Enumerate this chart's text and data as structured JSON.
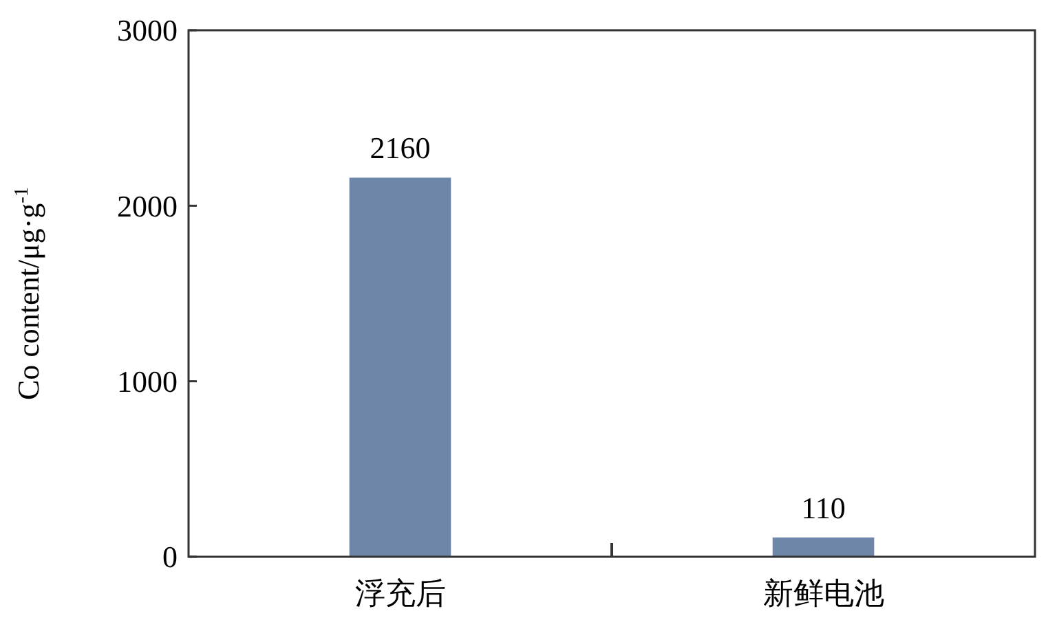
{
  "chart_data": {
    "type": "bar",
    "ylabel": "Co content/μg·g$^{-1}$",
    "categories": [
      "浮充后",
      "新鲜电池"
    ],
    "values": [
      2160,
      110
    ],
    "color": "#6e86a8",
    "ylim": [
      0,
      3000
    ],
    "yticks": [
      0,
      1000,
      2000,
      3000
    ],
    "data_labels": true,
    "grid": false
  }
}
